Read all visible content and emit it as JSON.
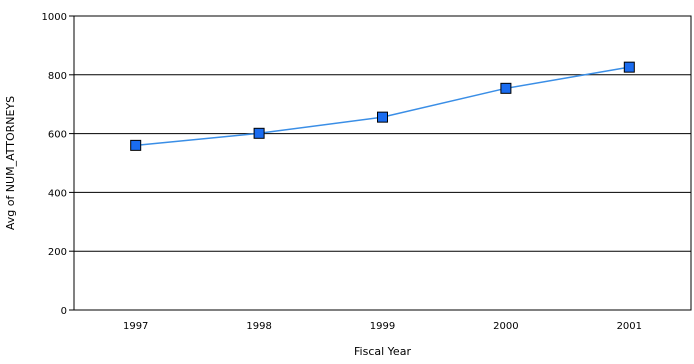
{
  "chart_data": {
    "type": "line",
    "categories": [
      "1997",
      "1998",
      "1999",
      "2000",
      "2001"
    ],
    "series": [
      {
        "values": [
          560,
          601,
          656,
          754,
          826
        ],
        "color": "#1a6cf0",
        "line_color": "#3a8ee6"
      }
    ],
    "xlabel": "Fiscal Year",
    "ylabel": "Avg of NUM_ATTORNEYS",
    "ylim": [
      0,
      1000
    ],
    "yticks": [
      0,
      200,
      400,
      600,
      800,
      1000
    ],
    "grid": "horizontal",
    "legend": "none"
  }
}
